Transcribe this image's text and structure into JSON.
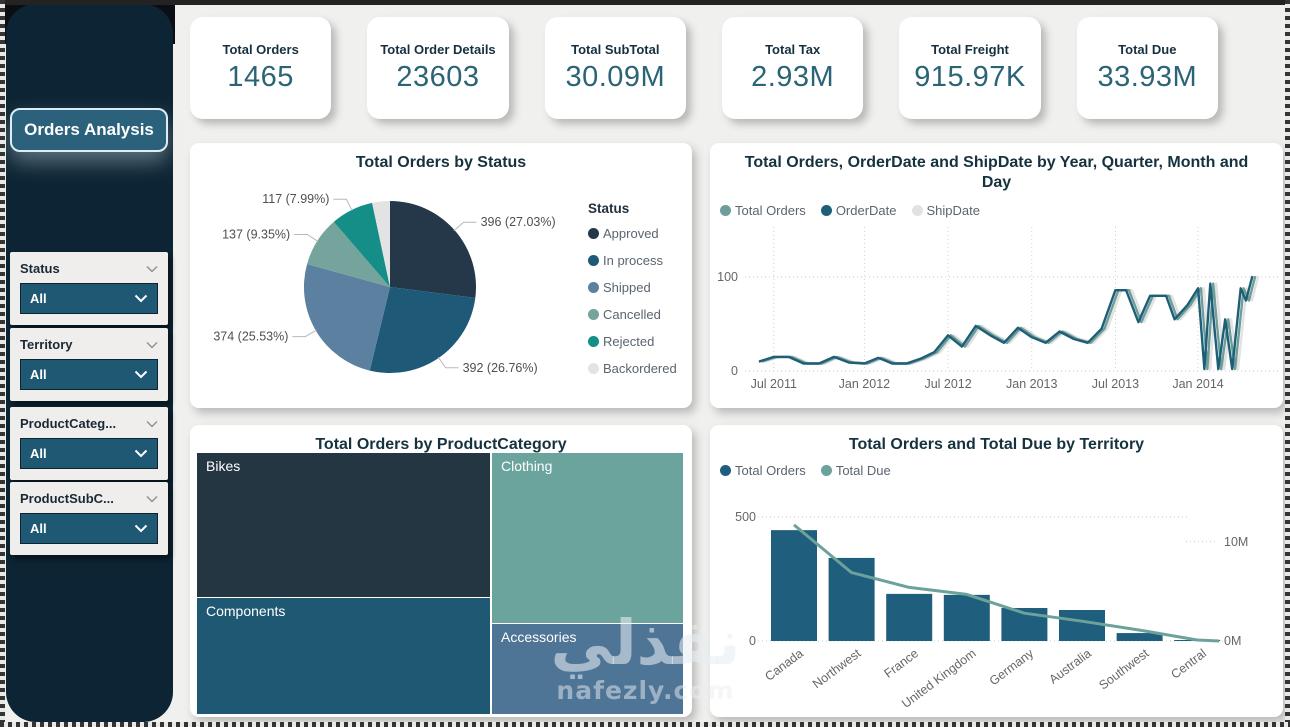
{
  "sidebar": {
    "title": "Orders Analysis",
    "filters": [
      {
        "label": "Status",
        "value": "All"
      },
      {
        "label": "Territory",
        "value": "All"
      },
      {
        "label": "ProductCateg...",
        "value": "All"
      },
      {
        "label": "ProductSubC...",
        "value": "All"
      }
    ]
  },
  "kpis": [
    {
      "label": "Total Orders",
      "value": "1465"
    },
    {
      "label": "Total Order Details",
      "value": "23603"
    },
    {
      "label": "Total SubTotal",
      "value": "30.09M"
    },
    {
      "label": "Total Tax",
      "value": "2.93M"
    },
    {
      "label": "Total Freight",
      "value": "915.97K"
    },
    {
      "label": "Total Due",
      "value": "33.93M"
    }
  ],
  "watermark": {
    "arabic": "نفذلي",
    "latin": "nafezly.com"
  },
  "colors": {
    "accent_dark_teal": "#1E5A78",
    "accent_sage": "#6F9E9A",
    "sidebar": "#0C2433",
    "kpi_value": "#2B6476",
    "title": "#16323F"
  },
  "chart_data": [
    {
      "id": "status_pie",
      "type": "pie",
      "title": "Total Orders by Status",
      "legend_title": "Status",
      "total": 1465,
      "slices": [
        {
          "label": "Approved",
          "value": 396,
          "pct": 27.03,
          "color": "#24384A",
          "callout": "396 (27.03%)"
        },
        {
          "label": "In process",
          "value": 392,
          "pct": 26.76,
          "color": "#1E5A78",
          "callout": "392 (26.76%)"
        },
        {
          "label": "Shipped",
          "value": 374,
          "pct": 25.53,
          "color": "#5C81A0",
          "callout": "374 (25.53%)"
        },
        {
          "label": "Cancelled",
          "value": 137,
          "pct": 9.35,
          "color": "#74A49C",
          "callout": "137 (9.35%)"
        },
        {
          "label": "Rejected",
          "value": 117,
          "pct": 7.99,
          "color": "#148E86",
          "callout": "117 (7.99%)"
        },
        {
          "label": "Backordered",
          "value": 49,
          "pct": 3.34,
          "color": "#E3E3E3",
          "callout": null
        }
      ]
    },
    {
      "id": "timeline",
      "type": "line",
      "title": "Total Orders, OrderDate and ShipDate by Year, Quarter, Month and Day",
      "ylim": [
        0,
        100
      ],
      "y_ticks": [
        100,
        0
      ],
      "x_ticks": [
        {
          "label": "Jul 2011",
          "pos": 5.4
        },
        {
          "label": "Jan 2012",
          "pos": 22.4
        },
        {
          "label": "Jul 2012",
          "pos": 38.1
        },
        {
          "label": "Jan 2013",
          "pos": 53.8
        },
        {
          "label": "Jul 2013",
          "pos": 69.5
        },
        {
          "label": "Jan 2014",
          "pos": 85.0
        }
      ],
      "legend": [
        {
          "name": "Total Orders",
          "color": "#6F9E9A"
        },
        {
          "name": "OrderDate",
          "color": "#1E6078"
        },
        {
          "name": "ShipDate",
          "color": "#E2E2E2"
        }
      ],
      "series": [
        {
          "name": "ShipDate",
          "color": "#E2E2E2",
          "dx": 1.1
        },
        {
          "name": "Total Orders",
          "color": "#6F9E9A",
          "dx": 0.55
        },
        {
          "name": "OrderDate",
          "color": "#1E5F78",
          "dx": 0
        }
      ],
      "points": [
        [
          2.6,
          10
        ],
        [
          5.4,
          15
        ],
        [
          8.2,
          15
        ],
        [
          11.0,
          8
        ],
        [
          13.9,
          8
        ],
        [
          16.7,
          15
        ],
        [
          19.5,
          9
        ],
        [
          22.4,
          8
        ],
        [
          25.0,
          14
        ],
        [
          27.6,
          8
        ],
        [
          30.3,
          8
        ],
        [
          32.9,
          13
        ],
        [
          35.5,
          20
        ],
        [
          38.1,
          38
        ],
        [
          40.7,
          26
        ],
        [
          43.3,
          48
        ],
        [
          46.0,
          38
        ],
        [
          48.6,
          30
        ],
        [
          51.2,
          46
        ],
        [
          53.8,
          36
        ],
        [
          56.4,
          30
        ],
        [
          59.0,
          42
        ],
        [
          61.7,
          34
        ],
        [
          64.3,
          30
        ],
        [
          66.9,
          45
        ],
        [
          69.5,
          86
        ],
        [
          71.5,
          86
        ],
        [
          73.8,
          52
        ],
        [
          76.0,
          80
        ],
        [
          79.0,
          80
        ],
        [
          80.6,
          55
        ],
        [
          83.0,
          70
        ],
        [
          85.0,
          88
        ],
        [
          86.2,
          2
        ],
        [
          87.3,
          93
        ],
        [
          88.8,
          2
        ],
        [
          90.1,
          55
        ],
        [
          91.4,
          2
        ],
        [
          93.0,
          88
        ],
        [
          94.0,
          75
        ],
        [
          95.2,
          101
        ]
      ]
    },
    {
      "id": "category_treemap",
      "type": "treemap",
      "title": "Total Orders by ProductCategory",
      "nodes": [
        {
          "label": "Bikes",
          "share_pct": 33.4,
          "color": "#243642",
          "column": "left"
        },
        {
          "label": "Components",
          "share_pct": 27.0,
          "color": "#1F5872",
          "column": "left"
        },
        {
          "label": "Clothing",
          "share_pct": 26.0,
          "color": "#6BA49D",
          "column": "right"
        },
        {
          "label": "Accessories",
          "share_pct": 13.8,
          "color": "#4E7496",
          "column": "right"
        }
      ]
    },
    {
      "id": "territory",
      "type": "bar+line",
      "title": "Total Orders and Total Due by Territory",
      "categories": [
        "Canada",
        "Northwest",
        "France",
        "United Kingdom",
        "Germany",
        "Australia",
        "Southwest",
        "Central"
      ],
      "bar_series": {
        "name": "Total Orders",
        "color": "#1F5E7C",
        "values": [
          447,
          335,
          190,
          186,
          133,
          125,
          32,
          4
        ]
      },
      "line_series": {
        "name": "Total Due",
        "color": "#6CA29B",
        "values_millions": [
          11.7,
          6.9,
          5.4,
          4.7,
          2.8,
          2.0,
          1.1,
          0.1
        ]
      },
      "y_left": {
        "ticks": [
          "500",
          "0"
        ],
        "max": 500
      },
      "y_right": {
        "ticks": [
          "10M",
          "0M"
        ],
        "max_at_gridline": 12.5
      }
    }
  ]
}
